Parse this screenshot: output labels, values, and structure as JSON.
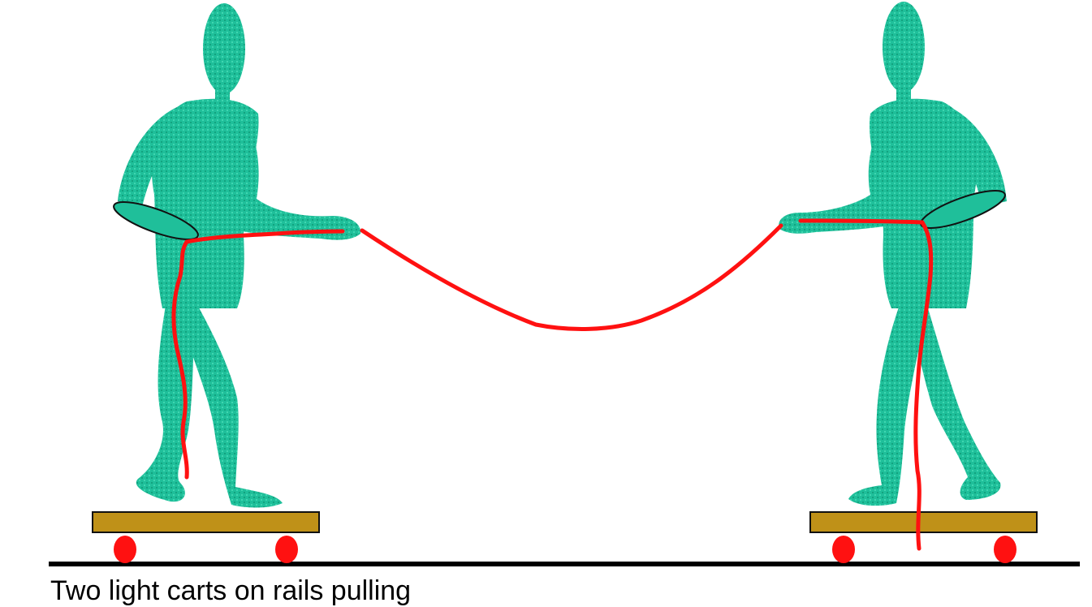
{
  "colors": {
    "figure": "#1fbf9a",
    "figure_texture": "#12a37f",
    "rope": "#ff1111",
    "arm_outline": "#111111",
    "cart_board": "#bf9118",
    "cart_board_outline": "#111111",
    "wheel": "#ff1111",
    "ground": "#000000",
    "background": "#ffffff"
  },
  "icons": {
    "left_person": "person-pulling-icon",
    "right_person": "person-pulling-icon",
    "cart": "skateboard-cart-icon",
    "rope": "rope-icon"
  },
  "caption": "Two light carts on rails pulling"
}
